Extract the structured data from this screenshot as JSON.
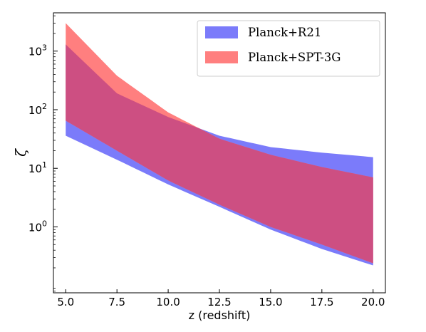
{
  "chart_data": {
    "type": "area",
    "xlabel": "z (redshift)",
    "ylabel": "ζ",
    "yscale": "log",
    "xlim": [
      4.4,
      20.6
    ],
    "ylim": [
      0.075,
      4500
    ],
    "x_ticks": [
      5.0,
      7.5,
      10.0,
      12.5,
      15.0,
      17.5,
      20.0
    ],
    "x_tick_labels": [
      "5.0",
      "7.5",
      "10.0",
      "12.5",
      "15.0",
      "17.5",
      "20.0"
    ],
    "y_ticks": [
      1,
      10,
      100,
      1000
    ],
    "y_tick_labels": [
      {
        "base": "10",
        "exp": "0"
      },
      {
        "base": "10",
        "exp": "1"
      },
      {
        "base": "10",
        "exp": "2"
      },
      {
        "base": "10",
        "exp": "3"
      }
    ],
    "legend_position": "top-right",
    "series": [
      {
        "name": "Planck+R21",
        "color": "#7b7bfa",
        "x": [
          5.0,
          7.5,
          10.0,
          12.5,
          15.0,
          17.5,
          20.0
        ],
        "y_upper": [
          1300,
          190,
          75,
          36,
          23,
          18.5,
          15.5
        ],
        "y_lower": [
          36,
          14,
          5.3,
          2.2,
          0.9,
          0.42,
          0.22
        ]
      },
      {
        "name": "Planck+SPT-3G",
        "color": "#ff7f7f",
        "x": [
          5.0,
          7.5,
          10.0,
          12.5,
          15.0,
          17.5,
          20.0
        ],
        "y_upper": [
          3000,
          380,
          90,
          32,
          17,
          10.5,
          7.0
        ],
        "y_lower": [
          65,
          20,
          6.2,
          2.4,
          1.0,
          0.5,
          0.24
        ]
      }
    ],
    "overlap_color": "#cd4f82"
  }
}
